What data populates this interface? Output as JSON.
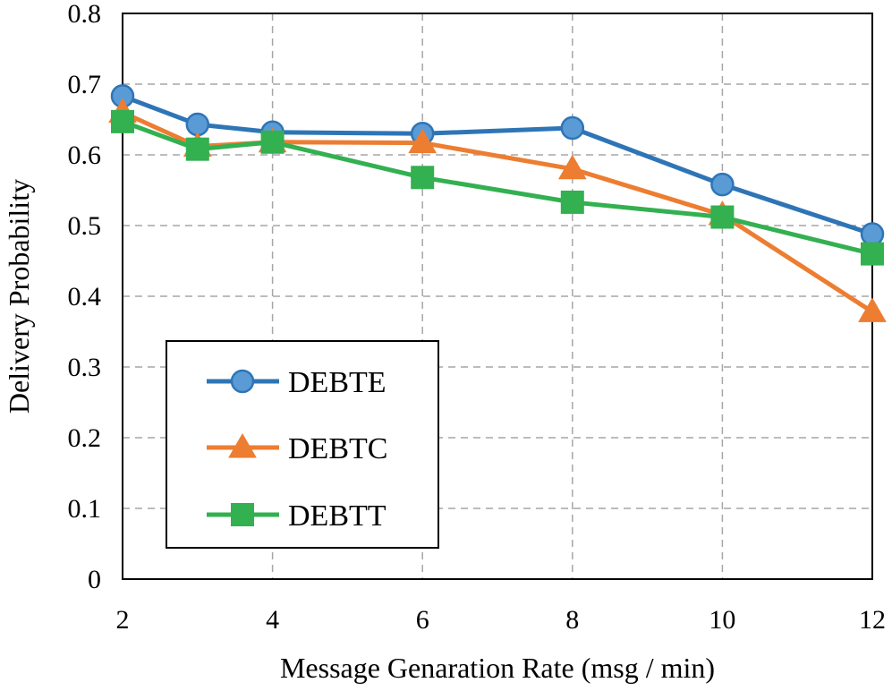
{
  "chart_data": {
    "type": "line",
    "title": "",
    "xlabel": "Message Genaration Rate (msg / min)",
    "ylabel": "Delivery Probability",
    "x": [
      2,
      3,
      4,
      6,
      8,
      10,
      12
    ],
    "xticks": [
      2,
      4,
      6,
      8,
      10,
      12
    ],
    "xtick_labels": [
      "2",
      "4",
      "6",
      "8",
      "10",
      "12"
    ],
    "xlim": [
      2,
      12
    ],
    "yticks": [
      0,
      0.1,
      0.2,
      0.3,
      0.4,
      0.5,
      0.6,
      0.7,
      0.8
    ],
    "ytick_labels": [
      "0",
      "0.1",
      "0.2",
      "0.3",
      "0.4",
      "0.5",
      "0.6",
      "0.7",
      "0.8"
    ],
    "ylim": [
      0,
      0.8
    ],
    "grid": true,
    "legend_position": "lower-left",
    "series": [
      {
        "name": "DEBTE",
        "marker": "circle",
        "color": "#2e75b6",
        "marker_color": "#5b9bd5",
        "values": [
          0.683,
          0.643,
          0.632,
          0.63,
          0.638,
          0.558,
          0.488
        ]
      },
      {
        "name": "DEBTC",
        "marker": "triangle",
        "color": "#ed7d31",
        "marker_color": "#ed7d31",
        "values": [
          0.66,
          0.612,
          0.618,
          0.617,
          0.58,
          0.515,
          0.378
        ]
      },
      {
        "name": "DEBTT",
        "marker": "square",
        "color": "#33b050",
        "marker_color": "#33b050",
        "values": [
          0.647,
          0.608,
          0.618,
          0.568,
          0.533,
          0.512,
          0.46
        ]
      }
    ]
  }
}
